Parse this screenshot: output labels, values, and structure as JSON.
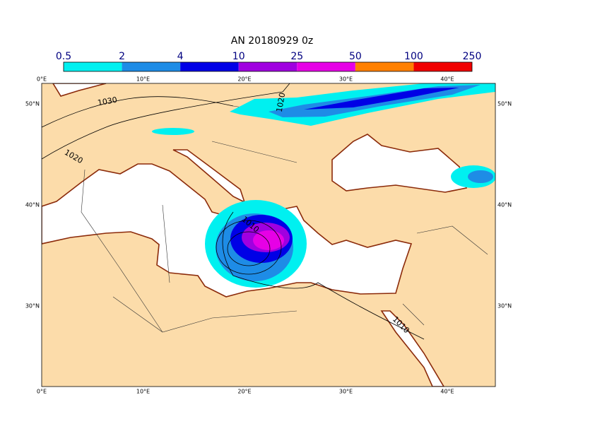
{
  "title": "AN  20180929 0z",
  "legend": {
    "levels": [
      0.5,
      2,
      4,
      10,
      25,
      50,
      100,
      250
    ],
    "colors": [
      "#00f0f0",
      "#1e8ce6",
      "#0000e6",
      "#a000e0",
      "#e600e6",
      "#ff8000",
      "#f00000"
    ]
  },
  "map": {
    "lon_labels": [
      "0°E",
      "10°E",
      "20°E",
      "30°E",
      "40°E"
    ],
    "lat_labels": [
      "50°N",
      "40°N",
      "30°N"
    ],
    "contour_labels": [
      "1030",
      "1020",
      "1020",
      "1010",
      "1010"
    ]
  }
}
